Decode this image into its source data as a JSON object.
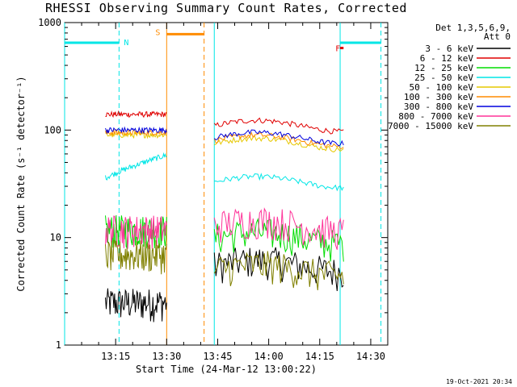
{
  "title": "RHESSI Observing Summary Count Rates, Corrected",
  "footer_timestamp": "19-Oct-2021 20:34",
  "chart_data": {
    "type": "line",
    "title": "RHESSI Observing Summary Count Rates, Corrected",
    "xlabel": "Start Time (24-Mar-12 13:00:22)",
    "ylabel": "Corrected Count Rate (s⁻¹ detector⁻¹)",
    "yscale": "log",
    "ylim": [
      1,
      1000
    ],
    "xlim_minutes": [
      0,
      95
    ],
    "x_ticks": [
      "13:15",
      "13:30",
      "13:45",
      "14:00",
      "14:15",
      "14:30"
    ],
    "x_tick_minutes": [
      15,
      30,
      45,
      60,
      75,
      90
    ],
    "y_ticks": [
      "1",
      "10",
      "100",
      "1000"
    ],
    "legend": {
      "header": [
        "Det 1,3,5,6,9,",
        "Att 0"
      ],
      "placement": "right"
    },
    "segments_minutes": [
      [
        12,
        30
      ],
      [
        44,
        82
      ]
    ],
    "series": [
      {
        "name": "3 - 6 keV",
        "color": "#000000",
        "values": [
          2.5,
          5.5
        ]
      },
      {
        "name": "6 - 12 keV",
        "color": "#e00000",
        "values": [
          140,
          110
        ]
      },
      {
        "name": "12 - 25 keV",
        "color": "#00dd00",
        "values": [
          12,
          10
        ]
      },
      {
        "name": "25 - 50 keV",
        "color": "#00e6e6",
        "values": [
          45,
          33
        ]
      },
      {
        "name": "50 - 100 keV",
        "color": "#e6c800",
        "values": [
          90,
          75
        ]
      },
      {
        "name": "100 - 300 keV",
        "color": "#ff8c00",
        "values": [
          95,
          80
        ]
      },
      {
        "name": "300 - 800 keV",
        "color": "#0000dd",
        "values": [
          100,
          85
        ]
      },
      {
        "name": "800 - 7000 keV",
        "color": "#ff3399",
        "values": [
          12,
          13
        ]
      },
      {
        "name": "7000 - 15000 keV",
        "color": "#808000",
        "values": [
          7,
          5
        ]
      }
    ],
    "annotations": [
      {
        "label": "N",
        "color": "#00e6e6",
        "kind": "night",
        "start_minute": 0,
        "end_minute": 16,
        "level": 650
      },
      {
        "label": "N",
        "color": "#00e6e6",
        "kind": "night",
        "start_minute": 81,
        "end_minute": 93,
        "level": 650
      },
      {
        "label": "S",
        "color": "#ff8c00",
        "kind": "saa",
        "start_minute": 30,
        "end_minute": 41,
        "level": 780
      },
      {
        "label": "F",
        "color": "#e00000",
        "kind": "flare",
        "start_minute": 81,
        "end_minute": 82,
        "level": 580
      }
    ],
    "markers_minutes": [
      {
        "minute": 0,
        "color": "#00e6e6",
        "style": "solid"
      },
      {
        "minute": 16,
        "color": "#00e6e6",
        "style": "dashed"
      },
      {
        "minute": 30,
        "color": "#ff8c00",
        "style": "solid"
      },
      {
        "minute": 41,
        "color": "#ff8c00",
        "style": "dashed"
      },
      {
        "minute": 44,
        "color": "#00e6e6",
        "style": "solid"
      },
      {
        "minute": 81,
        "color": "#00e6e6",
        "style": "solid"
      },
      {
        "minute": 93,
        "color": "#00e6e6",
        "style": "dashed"
      }
    ]
  }
}
